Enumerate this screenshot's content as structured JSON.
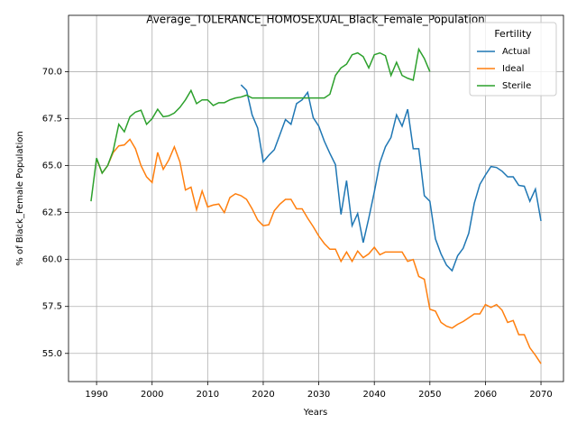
{
  "chart_data": {
    "type": "line",
    "title": "Average_TOLERANCE_HOMOSEXUAL_Black_Female_Population",
    "x_label": "Years",
    "y_label": "% of Black_Female Population",
    "legend_title": "Fertility",
    "legend_position": "upper right",
    "grid": true,
    "xlim": [
      1984.95,
      2074.05
    ],
    "ylim": [
      53.5,
      73.0
    ],
    "xticks": [
      1990,
      2000,
      2010,
      2020,
      2030,
      2040,
      2050,
      2060,
      2070
    ],
    "yticks": [
      {
        "value": 55,
        "label": "55.0"
      },
      {
        "value": 57.5,
        "label": "57.5"
      },
      {
        "value": 60,
        "label": "60.0"
      },
      {
        "value": 62.5,
        "label": "62.5"
      },
      {
        "value": 65,
        "label": "65.0"
      },
      {
        "value": 67.5,
        "label": "67.5"
      },
      {
        "value": 70,
        "label": "70.0"
      }
    ],
    "x": [
      1989,
      1990,
      1991,
      1992,
      1993,
      1994,
      1995,
      1996,
      1997,
      1998,
      1999,
      2000,
      2001,
      2002,
      2003,
      2004,
      2005,
      2006,
      2007,
      2008,
      2009,
      2010,
      2011,
      2012,
      2013,
      2014,
      2015,
      2016,
      2017,
      2018,
      2019,
      2020,
      2021,
      2022,
      2023,
      2024,
      2025,
      2026,
      2027,
      2028,
      2029,
      2030,
      2031,
      2032,
      2033,
      2034,
      2035,
      2036,
      2037,
      2038,
      2039,
      2040,
      2041,
      2042,
      2043,
      2044,
      2045,
      2046,
      2047,
      2048,
      2049,
      2050,
      2051,
      2052,
      2053,
      2054,
      2055,
      2056,
      2057,
      2058,
      2059,
      2060,
      2061,
      2062,
      2063,
      2064,
      2065,
      2066,
      2067,
      2068,
      2069,
      2070
    ],
    "series": [
      {
        "name": "Actual",
        "color": "#1f77b4",
        "values": [
          null,
          null,
          null,
          null,
          null,
          null,
          null,
          null,
          null,
          null,
          null,
          null,
          null,
          null,
          null,
          null,
          null,
          null,
          null,
          null,
          null,
          null,
          null,
          null,
          null,
          null,
          null,
          69.3,
          69.0,
          67.7,
          67.0,
          65.2,
          65.55,
          65.85,
          66.65,
          67.45,
          67.2,
          68.3,
          68.5,
          68.9,
          67.55,
          67.1,
          66.3,
          65.65,
          65.05,
          62.4,
          64.2,
          61.8,
          62.45,
          60.9,
          62.2,
          63.6,
          65.15,
          66.0,
          66.5,
          67.7,
          67.1,
          68.0,
          65.9,
          65.9,
          63.4,
          63.1,
          61.1,
          60.3,
          59.7,
          59.4,
          60.2,
          60.6,
          61.4,
          63.0,
          64.0,
          64.5,
          64.95,
          64.9,
          64.7,
          64.4,
          64.4,
          63.95,
          63.9,
          63.1,
          63.75,
          62.05
        ]
      },
      {
        "name": "Ideal",
        "color": "#ff7f0e",
        "values": [
          null,
          65.35,
          64.6,
          65.0,
          65.7,
          66.05,
          66.1,
          66.4,
          65.9,
          65.0,
          64.4,
          64.1,
          65.7,
          64.8,
          65.3,
          66.0,
          65.2,
          63.7,
          63.85,
          62.65,
          63.65,
          62.8,
          62.9,
          62.95,
          62.5,
          63.3,
          63.5,
          63.4,
          63.2,
          62.7,
          62.1,
          61.8,
          61.85,
          62.6,
          62.95,
          63.2,
          63.2,
          62.7,
          62.7,
          62.2,
          61.75,
          61.25,
          60.85,
          60.55,
          60.55,
          59.9,
          60.4,
          59.9,
          60.45,
          60.1,
          60.3,
          60.65,
          60.25,
          60.4,
          60.4,
          60.4,
          60.4,
          59.9,
          60.0,
          59.1,
          58.95,
          57.35,
          57.25,
          56.65,
          56.45,
          56.35,
          56.55,
          56.7,
          56.9,
          57.1,
          57.1,
          57.6,
          57.45,
          57.6,
          57.3,
          56.65,
          56.75,
          56.0,
          56.0,
          55.3,
          54.9,
          54.45
        ]
      },
      {
        "name": "Sterile",
        "color": "#2ca02c",
        "values": [
          63.1,
          65.4,
          64.6,
          65.0,
          65.8,
          67.2,
          66.8,
          67.6,
          67.85,
          67.95,
          67.2,
          67.5,
          68.0,
          67.6,
          67.65,
          67.8,
          68.1,
          68.5,
          69.0,
          68.3,
          68.5,
          68.5,
          68.2,
          68.35,
          68.35,
          68.5,
          68.6,
          68.65,
          68.75,
          68.6,
          68.6,
          68.6,
          68.6,
          68.6,
          68.6,
          68.6,
          68.6,
          68.6,
          68.6,
          68.6,
          68.6,
          68.6,
          68.6,
          68.8,
          69.8,
          70.2,
          70.4,
          70.9,
          71.0,
          70.8,
          70.2,
          70.9,
          71.0,
          70.85,
          69.8,
          70.5,
          69.8,
          69.65,
          69.55,
          71.2,
          70.7,
          70.0,
          null,
          null,
          null,
          null,
          null,
          null,
          null,
          null,
          null,
          null,
          null,
          null,
          null,
          null,
          null,
          null,
          null,
          null,
          null,
          null
        ]
      }
    ]
  }
}
